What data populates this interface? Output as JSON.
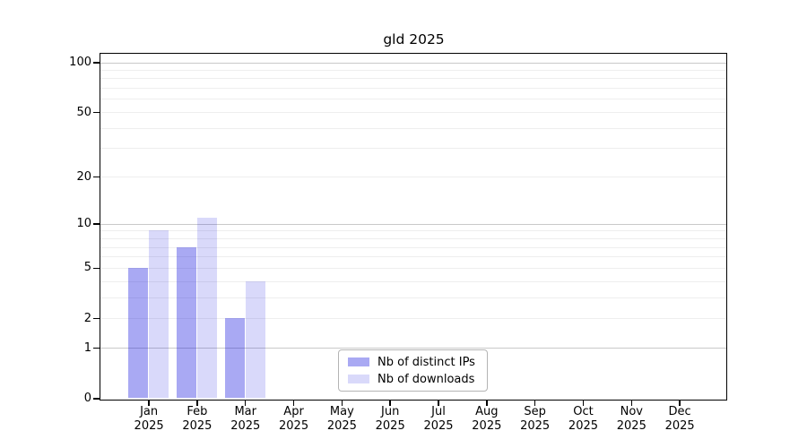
{
  "chart_data": {
    "type": "bar",
    "title": "gld 2025",
    "x": {
      "months": [
        "Jan",
        "Feb",
        "Mar",
        "Apr",
        "May",
        "Jun",
        "Jul",
        "Aug",
        "Sep",
        "Oct",
        "Nov",
        "Dec"
      ],
      "year": "2025"
    },
    "series": [
      {
        "key": "distinct-ips",
        "name": "Nb of distinct IPs",
        "color": "rgba(10,10,220,0.35)",
        "values": [
          5,
          7,
          2,
          0,
          0,
          0,
          0,
          0,
          0,
          0,
          0,
          0
        ]
      },
      {
        "key": "downloads",
        "name": "Nb of downloads",
        "color": "rgba(10,10,220,0.155)",
        "values": [
          9,
          11,
          4,
          0,
          0,
          0,
          0,
          0,
          0,
          0,
          0,
          0
        ]
      }
    ],
    "yscale": "log1p",
    "yticks": [
      0,
      1,
      2,
      5,
      10,
      20,
      50,
      100
    ],
    "grid_major": [
      1,
      10,
      100
    ],
    "grid_minor": [
      2,
      3,
      4,
      5,
      6,
      7,
      8,
      9,
      20,
      30,
      40,
      50,
      60,
      70,
      80,
      90
    ],
    "colors": {
      "grid_major": "#c9c9c9",
      "grid_minor": "#eeeeee",
      "axis": "#000000",
      "bar_ips_hex": "#a9a9f3",
      "bar_downloads_hex": "#d9d9fa"
    },
    "legend_position": "lower center"
  }
}
